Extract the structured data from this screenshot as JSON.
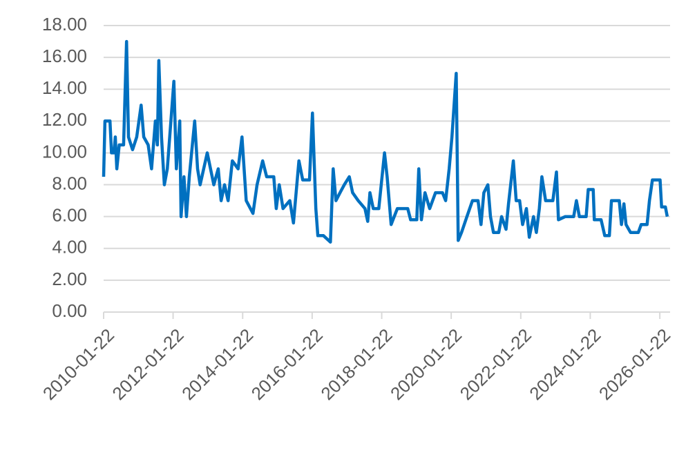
{
  "chart_data": {
    "type": "line",
    "x": [
      "2010-01-22",
      "2010-02-05",
      "2010-03-30",
      "2010-04-15",
      "2010-05-10",
      "2010-05-25",
      "2010-06-10",
      "2010-07-05",
      "2010-08-20",
      "2010-09-20",
      "2010-10-10",
      "2010-11-22",
      "2011-01-05",
      "2011-02-20",
      "2011-03-20",
      "2011-05-05",
      "2011-06-10",
      "2011-07-20",
      "2011-08-10",
      "2011-08-25",
      "2011-09-22",
      "2011-10-22",
      "2011-11-22",
      "2012-01-30",
      "2012-02-25",
      "2012-04-01",
      "2012-04-15",
      "2012-05-15",
      "2012-06-10",
      "2012-07-10",
      "2012-09-05",
      "2012-10-05",
      "2012-11-01",
      "2013-01-15",
      "2013-03-25",
      "2013-05-10",
      "2013-06-10",
      "2013-07-15",
      "2013-08-22",
      "2013-10-05",
      "2013-12-05",
      "2014-01-15",
      "2014-02-28",
      "2014-05-10",
      "2014-06-22",
      "2014-08-20",
      "2014-10-01",
      "2014-12-15",
      "2015-01-10",
      "2015-02-10",
      "2015-03-22",
      "2015-06-01",
      "2015-07-10",
      "2015-09-05",
      "2015-10-15",
      "2015-12-25",
      "2016-01-25",
      "2016-03-01",
      "2016-03-22",
      "2016-05-20",
      "2016-08-01",
      "2016-08-30",
      "2016-09-28",
      "2016-11-10",
      "2016-12-25",
      "2017-02-15",
      "2017-03-22",
      "2017-05-20",
      "2017-07-30",
      "2017-08-28",
      "2017-09-20",
      "2017-10-25",
      "2017-12-22",
      "2018-02-20",
      "2018-03-20",
      "2018-05-01",
      "2018-07-05",
      "2018-10-22",
      "2018-11-22",
      "2019-01-25",
      "2019-02-15",
      "2019-03-15",
      "2019-04-22",
      "2019-06-10",
      "2019-08-10",
      "2019-10-22",
      "2019-11-25",
      "2020-01-01",
      "2020-01-30",
      "2020-03-15",
      "2020-04-05",
      "2020-05-10",
      "2020-07-05",
      "2020-09-01",
      "2020-10-30",
      "2020-11-30",
      "2020-12-30",
      "2021-02-10",
      "2021-03-10",
      "2021-04-10",
      "2021-06-05",
      "2021-07-05",
      "2021-08-20",
      "2021-09-15",
      "2021-11-05",
      "2021-12-05",
      "2022-01-10",
      "2022-02-10",
      "2022-03-22",
      "2022-04-22",
      "2022-06-05",
      "2022-07-05",
      "2022-08-05",
      "2022-09-01",
      "2022-10-10",
      "2022-12-25",
      "2023-02-01",
      "2023-02-22",
      "2023-05-05",
      "2023-08-01",
      "2023-08-30",
      "2023-09-30",
      "2023-12-10",
      "2024-01-01",
      "2024-02-22",
      "2024-03-05",
      "2024-05-15",
      "2024-06-22",
      "2024-08-10",
      "2024-09-01",
      "2024-11-22",
      "2024-12-15",
      "2025-01-10",
      "2025-02-01",
      "2025-03-20",
      "2025-06-10",
      "2025-07-10",
      "2025-09-10",
      "2025-10-05",
      "2025-11-05",
      "2026-01-25",
      "2026-02-10",
      "2026-03-22",
      "2026-04-10"
    ],
    "series": [
      {
        "color": "#0070c0",
        "values": [
          8.5,
          12,
          12,
          10,
          10,
          11,
          9,
          10.5,
          10.5,
          17,
          11,
          10.2,
          11,
          13,
          11,
          10.5,
          9,
          12,
          10.5,
          15.8,
          11,
          8,
          9,
          14.5,
          9,
          12,
          6,
          8.5,
          6,
          8.5,
          12,
          9,
          8,
          10,
          8,
          9,
          7,
          8,
          7,
          9.5,
          9,
          11,
          7,
          6.2,
          8,
          9.5,
          8.5,
          8.5,
          6.5,
          8,
          6.5,
          7,
          5.6,
          9.5,
          8.3,
          8.3,
          12.5,
          6.5,
          4.8,
          4.8,
          4.4,
          9,
          7,
          7.5,
          8,
          8.5,
          7.5,
          7,
          6.5,
          5.7,
          7.5,
          6.5,
          6.5,
          10,
          8.5,
          5.5,
          6.5,
          6.5,
          5.8,
          5.8,
          9,
          5.8,
          7.5,
          6.5,
          7.5,
          7.5,
          7,
          9,
          11,
          15,
          4.5,
          5,
          6,
          7,
          7,
          5.5,
          7.5,
          8,
          6,
          5,
          5,
          6,
          5.2,
          6.8,
          9.5,
          7,
          7,
          5.5,
          6.5,
          4.7,
          6,
          5,
          6.5,
          8.5,
          7,
          7,
          8.8,
          5.8,
          6,
          6,
          7,
          6,
          6,
          7.7,
          7.7,
          5.8,
          5.8,
          4.8,
          4.8,
          7,
          7,
          5.5,
          6.8,
          5.5,
          5,
          5,
          5.5,
          5.5,
          7,
          8.3,
          8.3,
          6.6,
          6.6,
          6
        ]
      }
    ],
    "xlim": [
      "2010-01-22",
      "2026-05-10"
    ],
    "xticks": [
      "2010-01-22",
      "2012-01-22",
      "2014-01-22",
      "2016-01-22",
      "2018-01-22",
      "2020-01-22",
      "2022-01-22",
      "2024-01-22",
      "2026-01-22"
    ],
    "ylim": [
      0,
      18
    ],
    "yticks": [
      {
        "value": 0,
        "label": "0.00"
      },
      {
        "value": 2,
        "label": "2.00"
      },
      {
        "value": 4,
        "label": "4.00"
      },
      {
        "value": 6,
        "label": "6.00"
      },
      {
        "value": 8,
        "label": "8.00"
      },
      {
        "value": 10,
        "label": "10.00"
      },
      {
        "value": 12,
        "label": "12.00"
      },
      {
        "value": 14,
        "label": "14.00"
      },
      {
        "value": 16,
        "label": "16.00"
      },
      {
        "value": 18,
        "label": "18.00"
      }
    ],
    "grid": true
  }
}
